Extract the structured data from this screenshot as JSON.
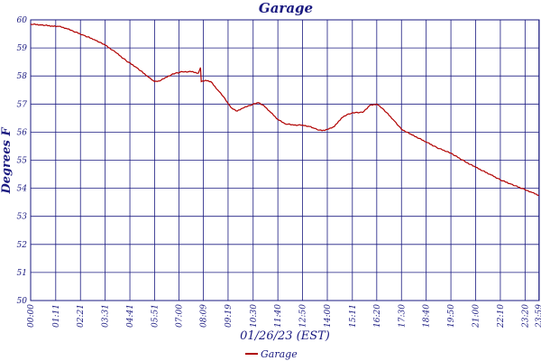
{
  "chart_data": {
    "type": "line",
    "title": "Garage",
    "xlabel": "01/26/23 (EST)",
    "ylabel": "Degrees F",
    "ylim": [
      50,
      60
    ],
    "xlim_minutes": [
      0,
      1440
    ],
    "grid": true,
    "legend_position": "bottom-center",
    "y_ticks": [
      "50",
      "51",
      "52",
      "53",
      "54",
      "55",
      "56",
      "57",
      "58",
      "59",
      "60"
    ],
    "x_ticks": [
      {
        "label": "00:00",
        "t": 0
      },
      {
        "label": "01:11",
        "t": 71
      },
      {
        "label": "02:21",
        "t": 141
      },
      {
        "label": "03:31",
        "t": 211
      },
      {
        "label": "04:41",
        "t": 281
      },
      {
        "label": "05:51",
        "t": 351
      },
      {
        "label": "07:00",
        "t": 420
      },
      {
        "label": "08:09",
        "t": 489
      },
      {
        "label": "09:19",
        "t": 559
      },
      {
        "label": "10:30",
        "t": 630
      },
      {
        "label": "11:40",
        "t": 700
      },
      {
        "label": "12:50",
        "t": 770
      },
      {
        "label": "14:00",
        "t": 840
      },
      {
        "label": "15:11",
        "t": 911
      },
      {
        "label": "16:20",
        "t": 980
      },
      {
        "label": "17:30",
        "t": 1050
      },
      {
        "label": "18:40",
        "t": 1120
      },
      {
        "label": "19:50",
        "t": 1190
      },
      {
        "label": "21:00",
        "t": 1260
      },
      {
        "label": "22:10",
        "t": 1330
      },
      {
        "label": "23:20",
        "t": 1400
      },
      {
        "label": "23:59",
        "t": 1439
      }
    ],
    "series": [
      {
        "name": "Garage",
        "color": "#b00000",
        "points": [
          [
            0,
            59.85
          ],
          [
            30,
            59.82
          ],
          [
            60,
            59.78
          ],
          [
            80,
            59.77
          ],
          [
            100,
            59.7
          ],
          [
            120,
            59.6
          ],
          [
            150,
            59.45
          ],
          [
            180,
            59.3
          ],
          [
            211,
            59.1
          ],
          [
            240,
            58.85
          ],
          [
            270,
            58.55
          ],
          [
            300,
            58.3
          ],
          [
            330,
            58.0
          ],
          [
            351,
            57.8
          ],
          [
            365,
            57.82
          ],
          [
            390,
            58.0
          ],
          [
            410,
            58.1
          ],
          [
            430,
            58.15
          ],
          [
            455,
            58.15
          ],
          [
            475,
            58.1
          ],
          [
            481,
            58.3
          ],
          [
            483,
            57.8
          ],
          [
            495,
            57.85
          ],
          [
            510,
            57.8
          ],
          [
            530,
            57.5
          ],
          [
            550,
            57.2
          ],
          [
            560,
            57.0
          ],
          [
            570,
            56.85
          ],
          [
            585,
            56.75
          ],
          [
            600,
            56.85
          ],
          [
            620,
            56.95
          ],
          [
            645,
            57.05
          ],
          [
            660,
            56.95
          ],
          [
            680,
            56.7
          ],
          [
            700,
            56.45
          ],
          [
            720,
            56.3
          ],
          [
            745,
            56.25
          ],
          [
            770,
            56.25
          ],
          [
            790,
            56.2
          ],
          [
            800,
            56.15
          ],
          [
            810,
            56.1
          ],
          [
            825,
            56.05
          ],
          [
            840,
            56.1
          ],
          [
            860,
            56.2
          ],
          [
            880,
            56.5
          ],
          [
            900,
            56.65
          ],
          [
            920,
            56.7
          ],
          [
            940,
            56.7
          ],
          [
            960,
            56.95
          ],
          [
            980,
            57.0
          ],
          [
            1000,
            56.8
          ],
          [
            1030,
            56.4
          ],
          [
            1050,
            56.1
          ],
          [
            1080,
            55.9
          ],
          [
            1120,
            55.65
          ],
          [
            1150,
            55.45
          ],
          [
            1190,
            55.25
          ],
          [
            1230,
            54.95
          ],
          [
            1260,
            54.75
          ],
          [
            1300,
            54.5
          ],
          [
            1330,
            54.3
          ],
          [
            1360,
            54.15
          ],
          [
            1400,
            53.95
          ],
          [
            1420,
            53.85
          ],
          [
            1439,
            53.75
          ]
        ]
      }
    ]
  }
}
